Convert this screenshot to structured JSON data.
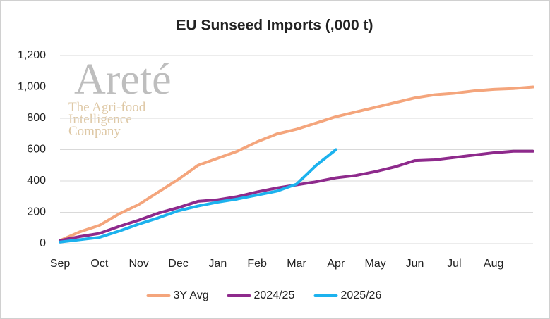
{
  "chart_data": {
    "type": "line",
    "title": "EU Sunseed Imports (,000 t)",
    "watermark": {
      "name": "Areté",
      "tagline": [
        "The Agri-food",
        "Intelligence",
        "Company"
      ]
    },
    "categories": [
      "Sep",
      null,
      "Oct",
      null,
      "Nov",
      null,
      "Dec",
      null,
      "Jan",
      null,
      "Feb",
      null,
      "Mar",
      null,
      "Apr",
      null,
      "May",
      null,
      "Jun",
      null,
      "Jul",
      null,
      "Aug",
      null,
      null
    ],
    "series": [
      {
        "name": "3Y Avg",
        "color": "#f4a57c",
        "values": [
          20,
          75,
          117,
          190,
          250,
          330,
          410,
          500,
          545,
          590,
          650,
          700,
          730,
          770,
          810,
          840,
          870,
          900,
          930,
          950,
          960,
          975,
          985,
          990,
          1000
        ]
      },
      {
        "name": "2024/25",
        "color": "#8e2a8c",
        "values": [
          20,
          45,
          65,
          110,
          150,
          195,
          230,
          270,
          280,
          300,
          330,
          355,
          375,
          395,
          420,
          435,
          460,
          490,
          530,
          535,
          550,
          565,
          580,
          590,
          590
        ]
      },
      {
        "name": "2025/26",
        "color": "#1cb2ee",
        "values": [
          10,
          25,
          40,
          80,
          125,
          165,
          210,
          240,
          265,
          285,
          310,
          335,
          380,
          500,
          600,
          null,
          null,
          null,
          null,
          null,
          null,
          null,
          null,
          null,
          null
        ]
      }
    ],
    "ylim": [
      0,
      1200
    ],
    "yticks": [
      0,
      200,
      400,
      600,
      800,
      {
        "value": 1000,
        "label": "1,000"
      },
      {
        "value": 1200,
        "label": "1,200"
      }
    ],
    "grid": true,
    "legend": "bottom"
  }
}
